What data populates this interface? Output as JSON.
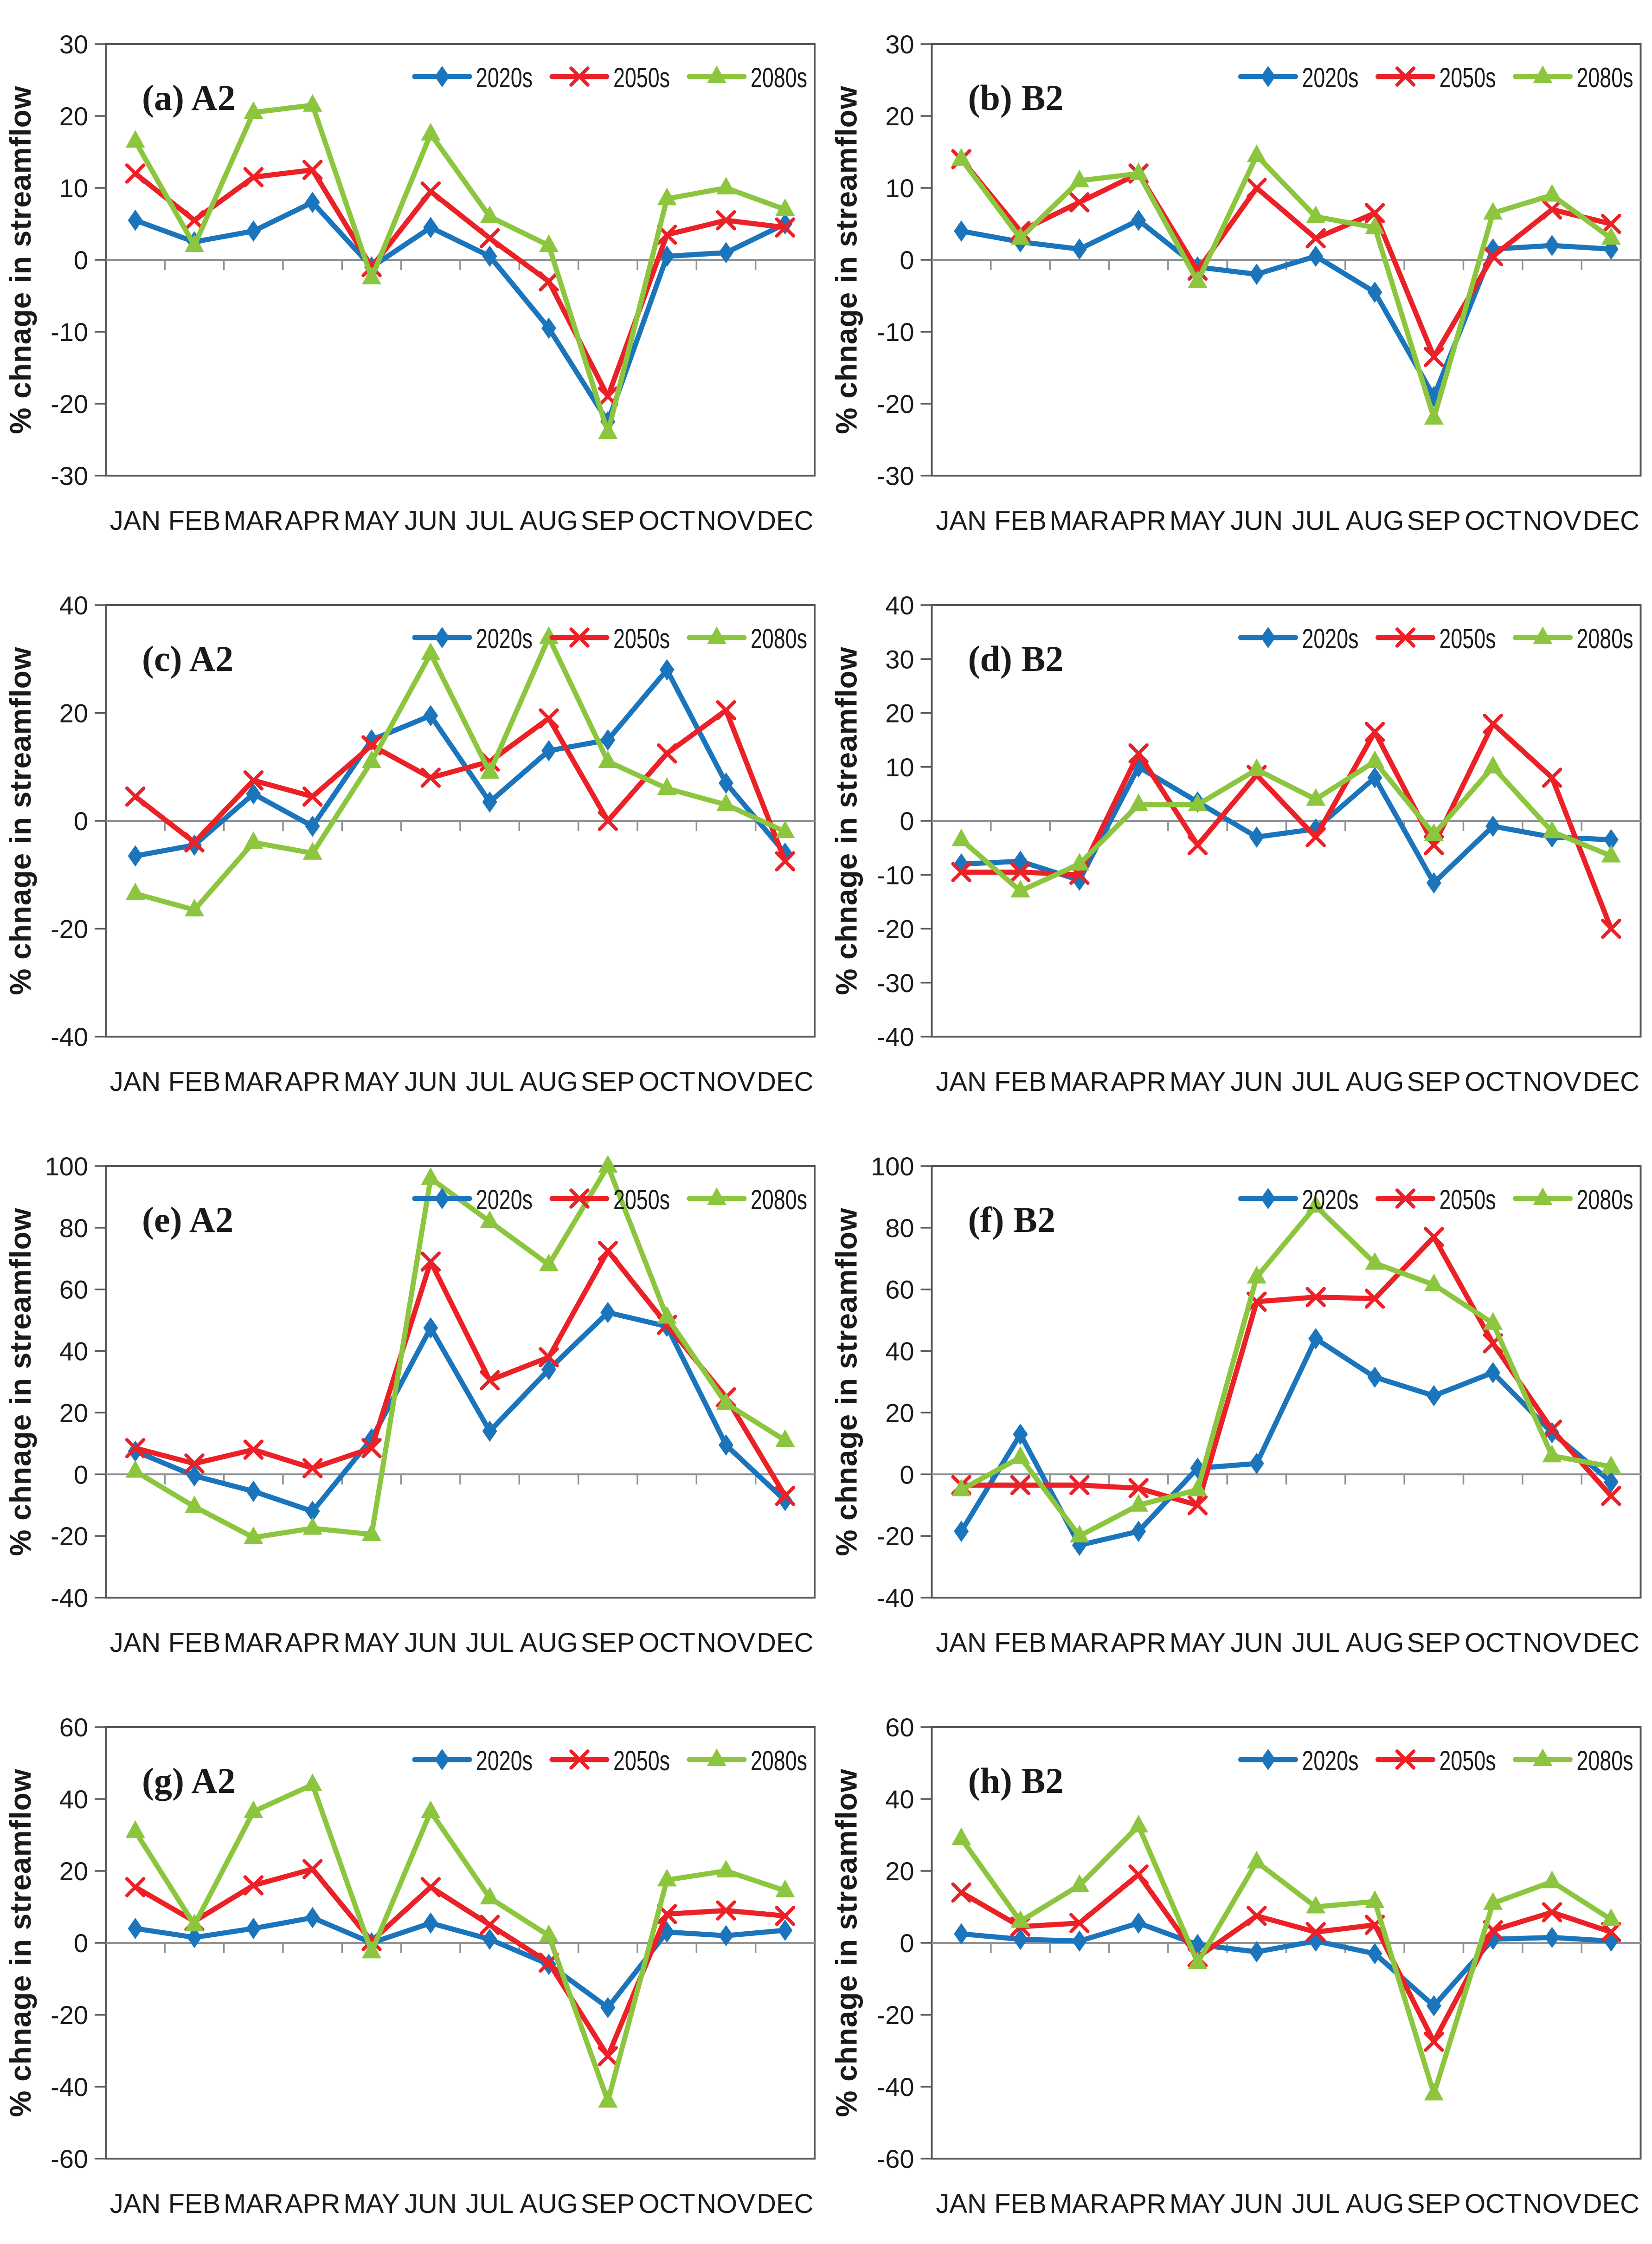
{
  "chart_common": {
    "ylabel": "% chnage in streamflow",
    "categories": [
      "JAN",
      "FEB",
      "MAR",
      "APR",
      "MAY",
      "JUN",
      "JUL",
      "AUG",
      "SEP",
      "OCT",
      "NOV",
      "DEC"
    ],
    "legend_labels": [
      "2020s",
      "2050s",
      "2080s"
    ],
    "legend_position": "top-right-inside",
    "grid": "off",
    "zero_line": true,
    "colors": {
      "2020s": "#1B75BC",
      "2050s": "#EB2127",
      "2080s": "#8CC63E",
      "plot_border": "#55585A",
      "zero_axis": "#8F9294",
      "text": "#1A1A1A"
    },
    "markers": {
      "2020s": "diamond",
      "2050s": "x",
      "2080s": "triangle"
    }
  },
  "chart_data": [
    {
      "type": "line",
      "panel": "(a) A2",
      "ylim": [
        -30,
        30
      ],
      "ystep": 10,
      "series": [
        {
          "name": "2020s",
          "values": [
            5.5,
            2.5,
            4,
            8,
            -1,
            4.5,
            0.5,
            -9.5,
            -22.5,
            0.5,
            1,
            5
          ]
        },
        {
          "name": "2050s",
          "values": [
            12,
            5.5,
            11.5,
            12.5,
            -1,
            9.5,
            3,
            -3,
            -19,
            3.5,
            5.5,
            4.5
          ]
        },
        {
          "name": "2080s",
          "values": [
            16.5,
            2,
            20.5,
            21.5,
            -2.5,
            17.5,
            6,
            2,
            -24,
            8.5,
            10,
            7
          ]
        }
      ]
    },
    {
      "type": "line",
      "panel": "(b) B2",
      "ylim": [
        -30,
        30
      ],
      "ystep": 10,
      "series": [
        {
          "name": "2020s",
          "values": [
            4,
            2.5,
            1.5,
            5.5,
            -1,
            -2,
            0.5,
            -4.5,
            -19,
            1.5,
            2,
            1.5
          ]
        },
        {
          "name": "2050s",
          "values": [
            14,
            4,
            8,
            12,
            -1.5,
            10,
            3,
            6.5,
            -13.5,
            0.5,
            7,
            5
          ]
        },
        {
          "name": "2080s",
          "values": [
            14,
            3,
            11,
            12,
            -3,
            14.5,
            6,
            4.5,
            -22,
            6.5,
            9,
            3
          ]
        }
      ]
    },
    {
      "type": "line",
      "panel": "(c) A2",
      "ylim": [
        -40,
        40
      ],
      "ystep": 20,
      "series": [
        {
          "name": "2020s",
          "values": [
            -6.5,
            -4.5,
            5,
            -1,
            15,
            19.5,
            3.5,
            13,
            15,
            28,
            7,
            -6
          ]
        },
        {
          "name": "2050s",
          "values": [
            4.5,
            -4,
            7.5,
            4.5,
            14,
            8,
            11,
            19,
            0,
            12.5,
            20.5,
            -7.5
          ]
        },
        {
          "name": "2080s",
          "values": [
            -13.5,
            -16.5,
            -4,
            -6,
            11,
            31,
            9,
            34,
            11,
            6,
            3,
            -2
          ]
        }
      ]
    },
    {
      "type": "line",
      "panel": "(d) B2",
      "ylim": [
        -40,
        40
      ],
      "ystep": 10,
      "series": [
        {
          "name": "2020s",
          "values": [
            -8,
            -7.5,
            -11,
            10,
            3.5,
            -3,
            -1.5,
            8,
            -11.5,
            -1,
            -3,
            -3.5
          ]
        },
        {
          "name": "2050s",
          "values": [
            -9.5,
            -9.5,
            -10,
            12.5,
            -4.5,
            8.5,
            -3,
            16.5,
            -4.5,
            18,
            8,
            -20
          ]
        },
        {
          "name": "2080s",
          "values": [
            -3.5,
            -13,
            -8,
            3,
            3,
            9.5,
            4,
            11,
            -2.5,
            10,
            -2,
            -6.5
          ]
        }
      ]
    },
    {
      "type": "line",
      "panel": "(e) A2",
      "ylim": [
        -40,
        100
      ],
      "ystep": 20,
      "series": [
        {
          "name": "2020s",
          "values": [
            7.5,
            -0.5,
            -5.5,
            -12,
            11.5,
            47.5,
            14,
            34,
            52.5,
            48,
            9.5,
            -8.5
          ]
        },
        {
          "name": "2050s",
          "values": [
            8.5,
            3.5,
            8,
            2,
            8.5,
            69,
            30.5,
            38,
            72.5,
            48.5,
            25,
            -7
          ]
        },
        {
          "name": "2080s",
          "values": [
            1,
            -10.5,
            -20.5,
            -17.5,
            -19.5,
            96,
            82,
            68,
            100,
            51,
            23,
            11
          ]
        }
      ]
    },
    {
      "type": "line",
      "panel": "(f) B2",
      "ylim": [
        -40,
        100
      ],
      "ystep": 20,
      "series": [
        {
          "name": "2020s",
          "values": [
            -18.5,
            13,
            -23,
            -18.5,
            2,
            3.5,
            44,
            31.5,
            25.5,
            33,
            13.5,
            -2.5
          ]
        },
        {
          "name": "2050s",
          "values": [
            -3.5,
            -3.5,
            -3.5,
            -4.5,
            -10,
            56,
            57.5,
            57,
            77,
            42.5,
            14.5,
            -7
          ]
        },
        {
          "name": "2080s",
          "values": [
            -5,
            5.5,
            -20,
            -10,
            -5,
            64,
            87,
            68.5,
            61.5,
            49,
            6,
            2.5
          ]
        }
      ]
    },
    {
      "type": "line",
      "panel": "(g) A2",
      "ylim": [
        -60,
        60
      ],
      "ystep": 20,
      "series": [
        {
          "name": "2020s",
          "values": [
            4,
            1.5,
            4,
            7,
            0,
            5.5,
            1,
            -6,
            -18,
            3,
            2,
            3.5
          ]
        },
        {
          "name": "2050s",
          "values": [
            15.5,
            6,
            16,
            20.5,
            0.5,
            15.5,
            5,
            -5.5,
            -31.5,
            8,
            9,
            7.5
          ]
        },
        {
          "name": "2080s",
          "values": [
            31,
            5,
            36.5,
            44,
            -2.5,
            36.5,
            12.5,
            2,
            -44,
            17.5,
            20,
            14.5
          ]
        }
      ]
    },
    {
      "type": "line",
      "panel": "(h) B2",
      "ylim": [
        -60,
        60
      ],
      "ystep": 20,
      "series": [
        {
          "name": "2020s",
          "values": [
            2.5,
            1,
            0.5,
            5.5,
            -0.5,
            -2.5,
            0.5,
            -3,
            -17.5,
            1,
            1.5,
            0.5
          ]
        },
        {
          "name": "2050s",
          "values": [
            14,
            4.5,
            5.5,
            19,
            -4,
            7.5,
            3,
            5,
            -27.5,
            3.5,
            8.5,
            3
          ]
        },
        {
          "name": "2080s",
          "values": [
            29,
            6,
            16,
            32.5,
            -5.5,
            22.5,
            10,
            11.5,
            -42,
            11,
            17,
            6.5
          ]
        }
      ]
    }
  ]
}
